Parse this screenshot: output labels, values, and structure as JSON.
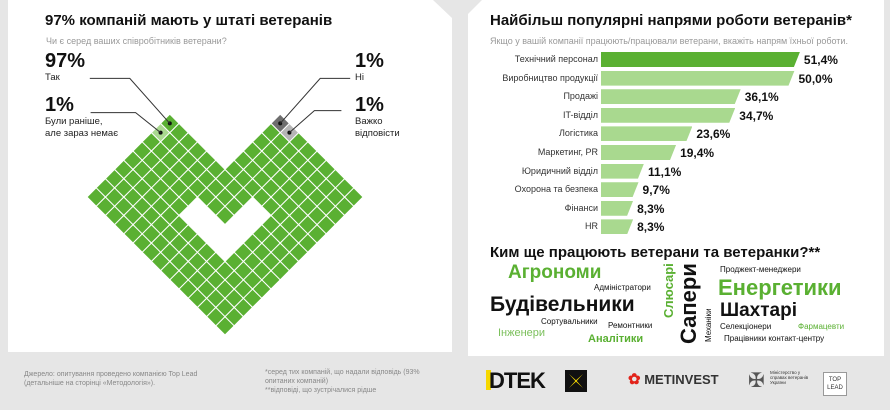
{
  "left": {
    "title": "97% компаній мають у штаті ветеранів",
    "question": "Чи є серед ваших співробітників ветерани?",
    "answers": [
      {
        "pct": "97%",
        "label": "Так"
      },
      {
        "pct": "1%",
        "label": "Були раніше, але зараз немає"
      },
      {
        "pct": "1%",
        "label": "Ні"
      },
      {
        "pct": "1%",
        "label": "Важко відповісти"
      }
    ]
  },
  "colors": {
    "green": "#5ab032",
    "light_green": "#a9d98f",
    "dark_gray": "#6e6e6e",
    "light_gray": "#b5b5b5"
  },
  "chart_data": {
    "type": "bar",
    "title": "Найбільш популярні напрями роботи ветеранів*",
    "subtitle": "Якщо у вашій компанії працюють/працювали ветерани, вкажіть напрям їхньої роботи.",
    "categories": [
      "Технічний персонал",
      "Виробництво продукції",
      "Продажі",
      "IT-відділ",
      "Логістика",
      "Маркетинг, PR",
      "Юридичний відділ",
      "Охорона та безпека",
      "Фінанси",
      "HR"
    ],
    "values": [
      51.4,
      50.0,
      36.1,
      34.7,
      23.6,
      19.4,
      11.1,
      9.7,
      8.3,
      8.3
    ],
    "value_labels": [
      "51,4%",
      "50,0%",
      "36,1%",
      "34,7%",
      "23,6%",
      "19,4%",
      "11,1%",
      "9,7%",
      "8,3%",
      "8,3%"
    ],
    "orientation": "horizontal"
  },
  "cloud": {
    "title": "Ким ще працюють ветерани та ветеранки?**",
    "words": [
      "Агрономи",
      "Адміністратори",
      "Будівельники",
      "Сортувальники",
      "Інженери",
      "Ремонтники",
      "Аналітики",
      "Слюсарі",
      "Сапери",
      "Механіки",
      "Проджект-менеджери",
      "Енергетики",
      "Шахтарі",
      "Селекціонери",
      "Фармацевти",
      "Працівники контакт-центру"
    ]
  },
  "footer": {
    "source": "Джерело: опитування проведено компанією Top Lead (детальніше на сторінці «Методологія»).",
    "note1": "*серед тих компаній, що надали відповідь (93% опитаних компаній)",
    "note2": "**відповіді, що зустрічалися рідше",
    "logos": [
      "DTEK",
      "METINVEST",
      "Міністерство у справах ветеранів України",
      "TOP LEAD"
    ]
  }
}
